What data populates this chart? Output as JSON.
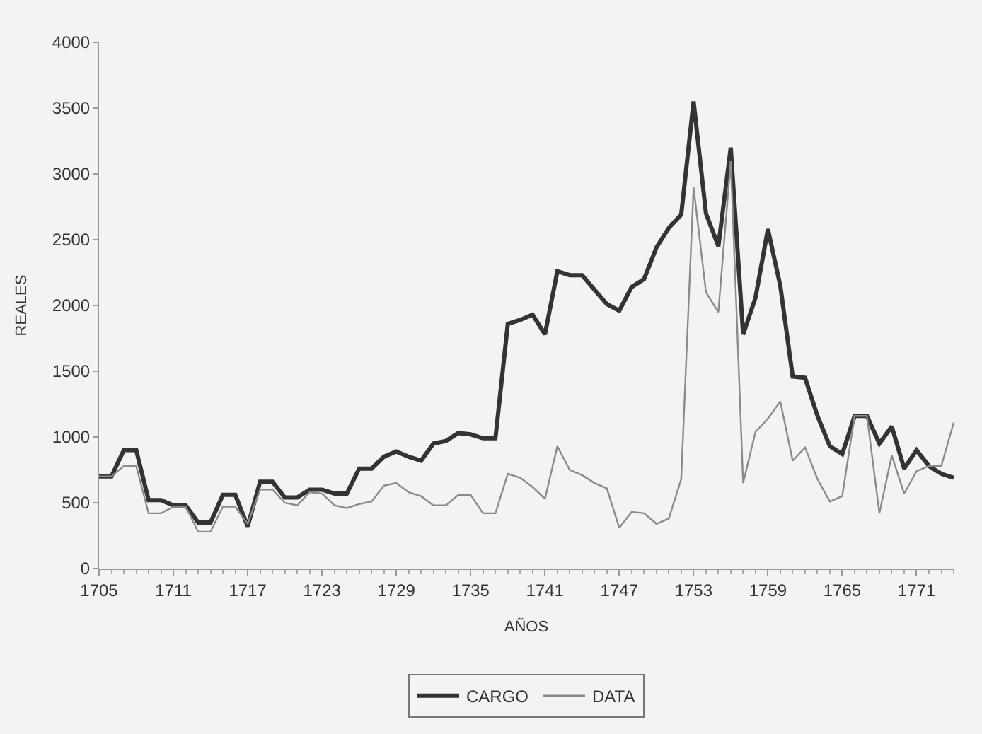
{
  "chart_data": {
    "type": "line",
    "xlabel": "AÑOS",
    "ylabel": "REALES",
    "x": [
      1705,
      1706,
      1707,
      1708,
      1709,
      1710,
      1711,
      1712,
      1713,
      1714,
      1715,
      1716,
      1717,
      1718,
      1719,
      1720,
      1721,
      1722,
      1723,
      1724,
      1725,
      1726,
      1727,
      1728,
      1729,
      1730,
      1731,
      1732,
      1733,
      1734,
      1735,
      1736,
      1737,
      1738,
      1739,
      1740,
      1741,
      1742,
      1743,
      1744,
      1745,
      1746,
      1747,
      1748,
      1749,
      1750,
      1751,
      1752,
      1753,
      1754,
      1755,
      1756,
      1757,
      1758,
      1759,
      1760,
      1761,
      1762,
      1763,
      1764,
      1765,
      1766,
      1767,
      1768,
      1769,
      1770,
      1771,
      1772,
      1773,
      1774
    ],
    "series": [
      {
        "name": "CARGO",
        "color": "#333333",
        "values": [
          700,
          700,
          900,
          900,
          520,
          520,
          480,
          480,
          350,
          350,
          560,
          560,
          320,
          660,
          660,
          540,
          540,
          600,
          600,
          570,
          570,
          760,
          760,
          850,
          890,
          850,
          820,
          950,
          970,
          1030,
          1020,
          990,
          990,
          1860,
          1890,
          1930,
          1780,
          2260,
          2230,
          2230,
          2120,
          2010,
          1960,
          2140,
          2200,
          2440,
          2590,
          2690,
          3550,
          2700,
          2450,
          3200,
          1780,
          2060,
          2580,
          2150,
          1460,
          1450,
          1160,
          930,
          870,
          1160,
          1160,
          950,
          1080,
          760,
          900,
          780,
          720,
          690
        ]
      },
      {
        "name": "DATA",
        "color": "#8a8a8a",
        "values": [
          700,
          700,
          780,
          780,
          420,
          420,
          470,
          470,
          280,
          280,
          470,
          470,
          340,
          600,
          600,
          500,
          480,
          580,
          570,
          480,
          460,
          490,
          510,
          630,
          650,
          580,
          550,
          480,
          480,
          560,
          560,
          420,
          420,
          720,
          690,
          620,
          530,
          930,
          750,
          710,
          650,
          610,
          310,
          430,
          420,
          340,
          380,
          680,
          2900,
          2100,
          1950,
          3100,
          650,
          1040,
          1140,
          1270,
          820,
          920,
          680,
          510,
          550,
          1160,
          1160,
          420,
          860,
          570,
          740,
          780,
          780,
          1110
        ]
      }
    ],
    "xlim": [
      1705,
      1774
    ],
    "xticks": [
      1705,
      1711,
      1717,
      1723,
      1729,
      1735,
      1741,
      1747,
      1753,
      1759,
      1765,
      1771
    ],
    "ylim": [
      0,
      4000
    ],
    "yticks": [
      0,
      500,
      1000,
      1500,
      2000,
      2500,
      3000,
      3500,
      4000
    ],
    "grid": false,
    "legend": "bottom",
    "marker": "none",
    "line_style": "solid"
  }
}
